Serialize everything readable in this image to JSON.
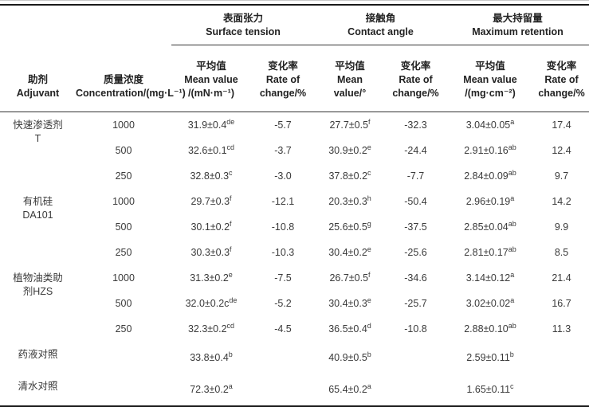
{
  "table": {
    "col_headers": {
      "adjuvant": {
        "zh": "助剂",
        "en": "Adjuvant"
      },
      "concentration": {
        "zh": "质量浓度",
        "en": "Concentration/(mg·L⁻¹)"
      },
      "groups": [
        {
          "zh": "表面张力",
          "en": "Surface tension",
          "mean": {
            "zh": "平均值",
            "en1": "Mean value",
            "en2": "/(mN·m⁻¹)"
          },
          "rate": {
            "zh": "变化率",
            "en1": "Rate of",
            "en2": "change/%"
          }
        },
        {
          "zh": "接触角",
          "en": "Contact angle",
          "mean": {
            "zh": "平均值",
            "en1": "Mean",
            "en2": "value/°"
          },
          "rate": {
            "zh": "变化率",
            "en1": "Rate of",
            "en2": "change/%"
          }
        },
        {
          "zh": "最大持留量",
          "en": "Maximum retention",
          "mean": {
            "zh": "平均值",
            "en1": "Mean value",
            "en2": "/(mg·cm⁻²)"
          },
          "rate": {
            "zh": "变化率",
            "en1": "Rate of",
            "en2": "change/%"
          }
        }
      ]
    },
    "rows": [
      {
        "adjuvant_lines": [
          "快速渗透剂",
          "T"
        ],
        "group_size": 3,
        "concentration": "1000",
        "st_mean": {
          "v": "31.9±0.4",
          "s": "de"
        },
        "st_rate": "-5.7",
        "ca_mean": {
          "v": "27.7±0.5",
          "s": "f"
        },
        "ca_rate": "-32.3",
        "ret_mean": {
          "v": "3.04±0.05",
          "s": "a"
        },
        "ret_rate": "17.4"
      },
      {
        "concentration": "500",
        "st_mean": {
          "v": "32.6±0.1",
          "s": "cd"
        },
        "st_rate": "-3.7",
        "ca_mean": {
          "v": "30.9±0.2",
          "s": "e"
        },
        "ca_rate": "-24.4",
        "ret_mean": {
          "v": "2.91±0.16",
          "s": "ab"
        },
        "ret_rate": "12.4"
      },
      {
        "concentration": "250",
        "st_mean": {
          "v": "32.8±0.3",
          "s": "c"
        },
        "st_rate": "-3.0",
        "ca_mean": {
          "v": "37.8±0.2",
          "s": "c"
        },
        "ca_rate": "-7.7",
        "ret_mean": {
          "v": "2.84±0.09",
          "s": "ab"
        },
        "ret_rate": "9.7"
      },
      {
        "adjuvant_lines": [
          "有机硅",
          "DA101"
        ],
        "group_size": 3,
        "concentration": "1000",
        "st_mean": {
          "v": "29.7±0.3",
          "s": "f"
        },
        "st_rate": "-12.1",
        "ca_mean": {
          "v": "20.3±0.3",
          "s": "h"
        },
        "ca_rate": "-50.4",
        "ret_mean": {
          "v": "2.96±0.19",
          "s": "a"
        },
        "ret_rate": "14.2"
      },
      {
        "concentration": "500",
        "st_mean": {
          "v": "30.1±0.2",
          "s": "f"
        },
        "st_rate": "-10.8",
        "ca_mean": {
          "v": "25.6±0.5",
          "s": "g"
        },
        "ca_rate": "-37.5",
        "ret_mean": {
          "v": "2.85±0.04",
          "s": "ab"
        },
        "ret_rate": "9.9"
      },
      {
        "concentration": "250",
        "st_mean": {
          "v": "30.3±0.3",
          "s": "f"
        },
        "st_rate": "-10.3",
        "ca_mean": {
          "v": "30.4±0.2",
          "s": "e"
        },
        "ca_rate": "-25.6",
        "ret_mean": {
          "v": "2.81±0.17",
          "s": "ab"
        },
        "ret_rate": "8.5"
      },
      {
        "adjuvant_lines": [
          "植物油类助",
          "剂HZS"
        ],
        "group_size": 3,
        "concentration": "1000",
        "st_mean": {
          "v": "31.3±0.2",
          "s": "e"
        },
        "st_rate": "-7.5",
        "ca_mean": {
          "v": "26.7±0.5",
          "s": "f"
        },
        "ca_rate": "-34.6",
        "ret_mean": {
          "v": "3.14±0.12",
          "s": "a"
        },
        "ret_rate": "21.4"
      },
      {
        "concentration": "500",
        "st_mean": {
          "v": "32.0±0.2c",
          "s": "de"
        },
        "st_rate": "-5.2",
        "ca_mean": {
          "v": "30.4±0.3",
          "s": "e"
        },
        "ca_rate": "-25.7",
        "ret_mean": {
          "v": "3.02±0.02",
          "s": "a"
        },
        "ret_rate": "16.7"
      },
      {
        "concentration": "250",
        "st_mean": {
          "v": "32.3±0.2",
          "s": "cd"
        },
        "st_rate": "-4.5",
        "ca_mean": {
          "v": "36.5±0.4",
          "s": "d"
        },
        "ca_rate": "-10.8",
        "ret_mean": {
          "v": "2.88±0.10",
          "s": "ab"
        },
        "ret_rate": "11.3"
      },
      {
        "adjuvant_lines": [
          "药液对照"
        ],
        "group_size": 1,
        "concentration": "",
        "st_mean": {
          "v": "33.8±0.4",
          "s": "b"
        },
        "st_rate": "",
        "ca_mean": {
          "v": "40.9±0.5",
          "s": "b"
        },
        "ca_rate": "",
        "ret_mean": {
          "v": "2.59±0.11",
          "s": "b"
        },
        "ret_rate": ""
      },
      {
        "adjuvant_lines": [
          "清水对照"
        ],
        "group_size": 1,
        "concentration": "",
        "st_mean": {
          "v": "72.3±0.2",
          "s": "a"
        },
        "st_rate": "",
        "ca_mean": {
          "v": "65.4±0.2",
          "s": "a"
        },
        "ca_rate": "",
        "ret_mean": {
          "v": "1.65±0.11",
          "s": "c"
        },
        "ret_rate": ""
      }
    ]
  },
  "colors": {
    "rule_heavy": "#1a1a1a",
    "rule_light": "#333333",
    "text": "#3a3a3a",
    "header_text": "#222222",
    "background": "#ffffff"
  }
}
